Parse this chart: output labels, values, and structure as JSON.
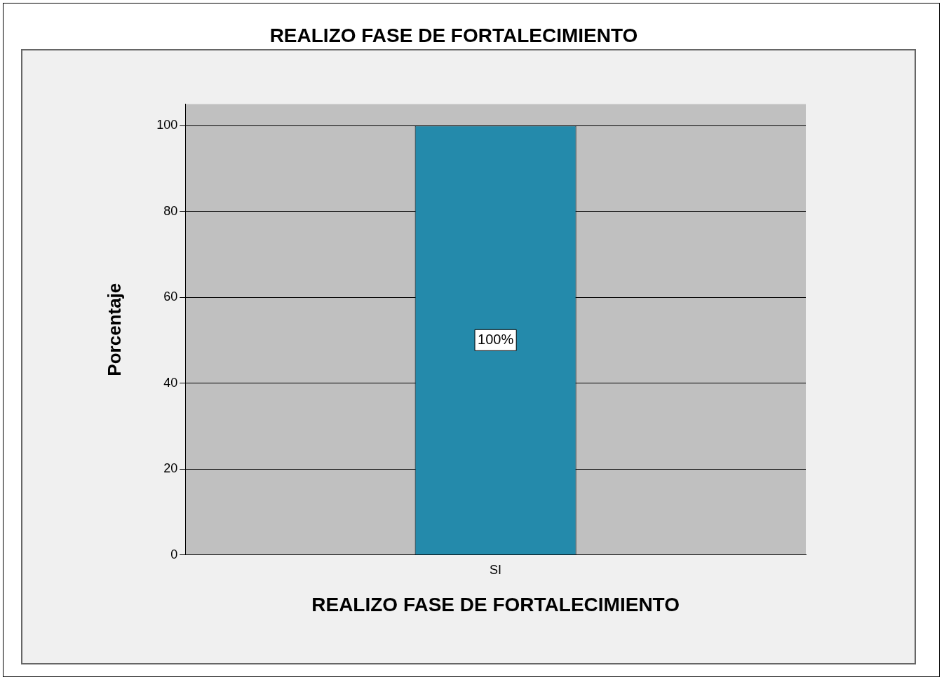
{
  "chart_data": {
    "type": "bar",
    "title": "REALIZO FASE DE FORTALECIMIENTO",
    "xlabel": "REALIZO FASE DE FORTALECIMIENTO",
    "ylabel": "Porcentaje",
    "categories": [
      "SI"
    ],
    "values": [
      100
    ],
    "color": "#248aab",
    "value_labels": [
      "100%"
    ],
    "ylim": [
      0,
      105
    ],
    "yticks": [
      0,
      20,
      40,
      60,
      80,
      100
    ],
    "grid": "y",
    "legend": false
  }
}
